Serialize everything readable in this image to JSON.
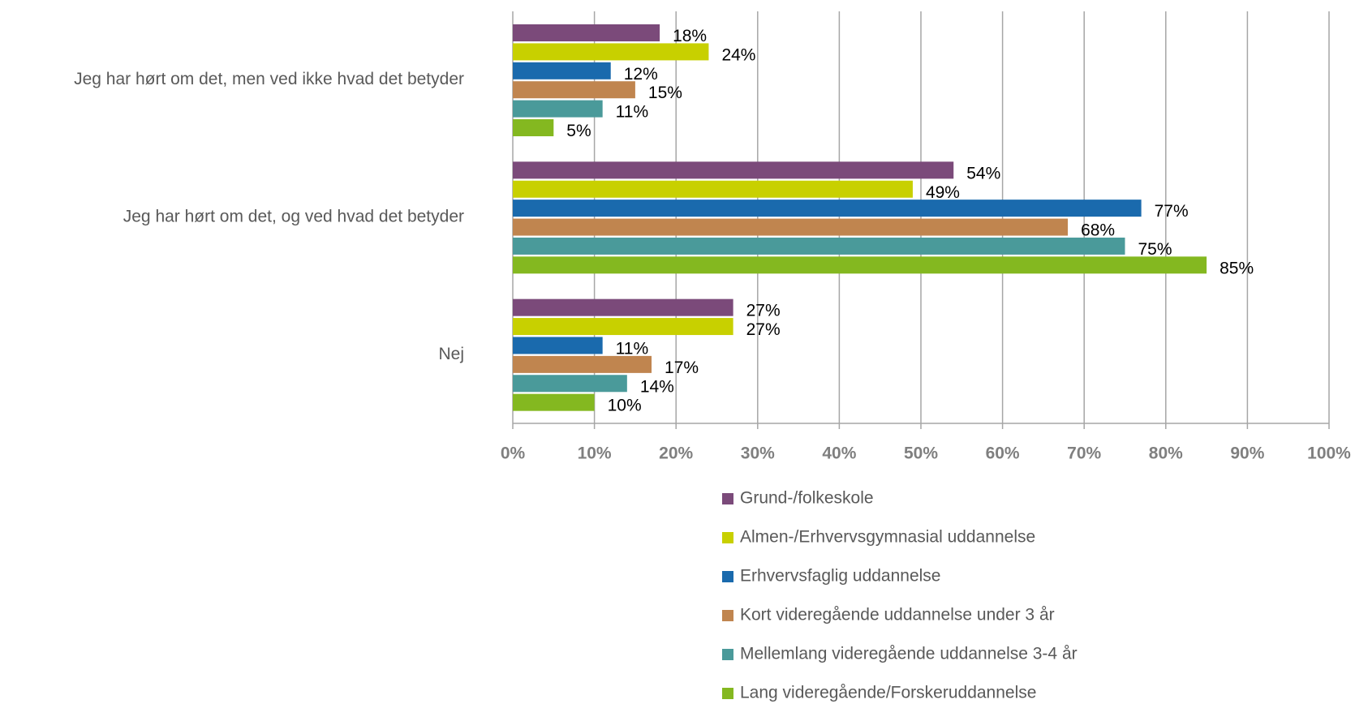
{
  "chart_data": {
    "type": "bar",
    "orientation": "horizontal",
    "categories": [
      "Jeg har hørt om det, men ved ikke hvad det betyder",
      "Jeg har hørt om det, og ved hvad det betyder",
      "Nej"
    ],
    "series": [
      {
        "name": "Grund-/folkeskole",
        "color": "#7b4a7a",
        "values": [
          18,
          54,
          27
        ],
        "value_labels": [
          "18%",
          "54%",
          "27%"
        ]
      },
      {
        "name": "Almen-/Erhvervsgymnasial uddannelse",
        "color": "#c8d000",
        "values": [
          24,
          49,
          27
        ],
        "value_labels": [
          "24%",
          "49%",
          "27%"
        ]
      },
      {
        "name": "Erhvervsfaglig uddannelse",
        "color": "#1a6aad",
        "values": [
          12,
          77,
          11
        ],
        "value_labels": [
          "12%",
          "77%",
          "11%"
        ]
      },
      {
        "name": "Kort videregående uddannelse under 3 år",
        "color": "#c0854f",
        "values": [
          15,
          68,
          17
        ],
        "value_labels": [
          "15%",
          "68%",
          "17%"
        ]
      },
      {
        "name": "Mellemlang videregående uddannelse 3-4 år",
        "color": "#4a9a9a",
        "values": [
          11,
          75,
          14
        ],
        "value_labels": [
          "11%",
          "75%",
          "14%"
        ]
      },
      {
        "name": "Lang videregående/Forskeruddannelse",
        "color": "#84b820",
        "values": [
          5,
          85,
          10
        ],
        "value_labels": [
          "5%",
          "85%",
          "10%"
        ]
      }
    ],
    "xlim": [
      0,
      100
    ],
    "xticks": [
      {
        "value": 0,
        "label": "0%"
      },
      {
        "value": 10,
        "label": "10%"
      },
      {
        "value": 20,
        "label": "20%"
      },
      {
        "value": 30,
        "label": "30%"
      },
      {
        "value": 40,
        "label": "40%"
      },
      {
        "value": 50,
        "label": "50%"
      },
      {
        "value": 60,
        "label": "60%"
      },
      {
        "value": 70,
        "label": "70%"
      },
      {
        "value": 80,
        "label": "80%"
      },
      {
        "value": 90,
        "label": "90%"
      },
      {
        "value": 100,
        "label": "100%"
      }
    ],
    "grid": true,
    "legend": "bottom"
  }
}
